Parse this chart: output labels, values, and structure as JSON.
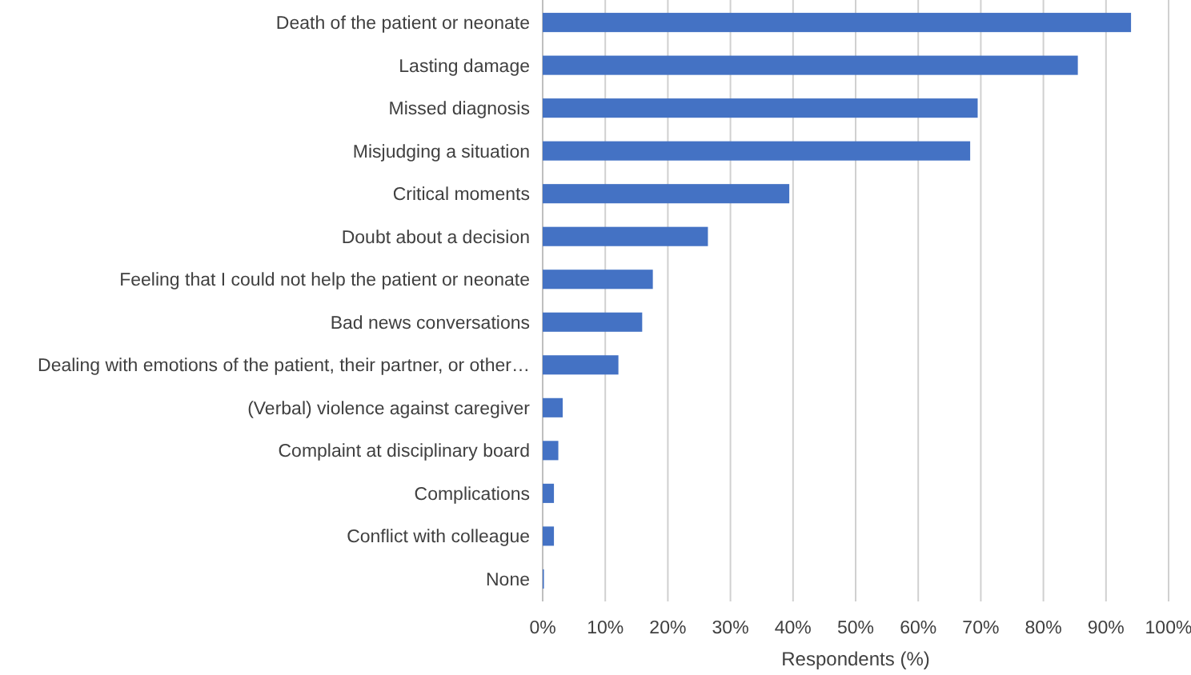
{
  "chart_data": {
    "type": "bar",
    "orientation": "horizontal",
    "xlabel": "Respondents (%)",
    "categories": [
      "Death of the patient or neonate",
      "Lasting damage",
      "Missed diagnosis",
      "Misjudging a situation",
      "Critical moments",
      "Doubt about a decision",
      "Feeling that I could not help the patient or neonate",
      "Bad news conversations",
      "Dealing with emotions of the patient, their partner, or other…",
      "(Verbal) violence against caregiver",
      "Complaint at disciplinary board",
      "Complications",
      "Conflict with colleague",
      "None"
    ],
    "values": [
      94.0,
      85.5,
      69.5,
      68.3,
      39.4,
      26.4,
      17.6,
      15.9,
      12.1,
      3.2,
      2.5,
      1.8,
      1.8,
      0.2
    ],
    "color": "#4472c4",
    "xlim": [
      0,
      100
    ],
    "xticks": [
      {
        "value": 0,
        "label": "0%"
      },
      {
        "value": 10,
        "label": "10%"
      },
      {
        "value": 20,
        "label": "20%"
      },
      {
        "value": 30,
        "label": "30%"
      },
      {
        "value": 40,
        "label": "40%"
      },
      {
        "value": 50,
        "label": "50%"
      },
      {
        "value": 60,
        "label": "60%"
      },
      {
        "value": 70,
        "label": "70%"
      },
      {
        "value": 80,
        "label": "80%"
      },
      {
        "value": 90,
        "label": "90%"
      },
      {
        "value": 100,
        "label": "100%"
      }
    ],
    "grid": "x"
  }
}
